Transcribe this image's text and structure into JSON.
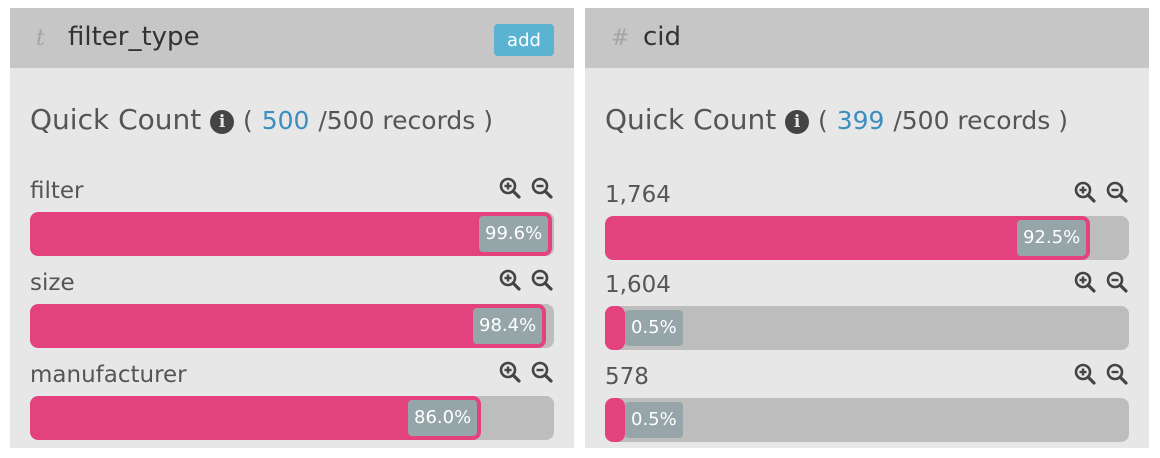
{
  "left_panel": {
    "type_icon": "t",
    "column_name": "filter_type",
    "add_label": "add",
    "quick_count": {
      "label": "Quick Count",
      "open_paren": "(",
      "count": "500",
      "suffix": "/500 records )"
    },
    "rows": [
      {
        "label": "filter",
        "percent_label": "99.6%",
        "fraction": 0.996
      },
      {
        "label": "size",
        "percent_label": "98.4%",
        "fraction": 0.984
      },
      {
        "label": "manufacturer",
        "percent_label": "86.0%",
        "fraction": 0.86
      }
    ]
  },
  "right_panel": {
    "type_icon": "#",
    "column_name": "cid",
    "quick_count": {
      "label": "Quick Count",
      "open_paren": "(",
      "count": "399",
      "suffix": "/500 records )"
    },
    "rows": [
      {
        "label": "1,764",
        "percent_label": "92.5%",
        "fraction": 0.925
      },
      {
        "label": "1,604",
        "percent_label": "0.5%",
        "fraction": 0.005
      },
      {
        "label": "578",
        "percent_label": "0.5%",
        "fraction": 0.005
      }
    ]
  },
  "icons": {
    "info": "info-circle-icon",
    "zoom_in": "zoom-in-icon",
    "zoom_out": "zoom-out-icon"
  },
  "colors": {
    "bar_fill": "#e4427d",
    "bar_track": "#bdbdbd",
    "count_link": "#3a8fc0",
    "add_button": "#5bb3d2",
    "header_bg": "#c6c6c6",
    "panel_bg": "#e7e7e7"
  }
}
